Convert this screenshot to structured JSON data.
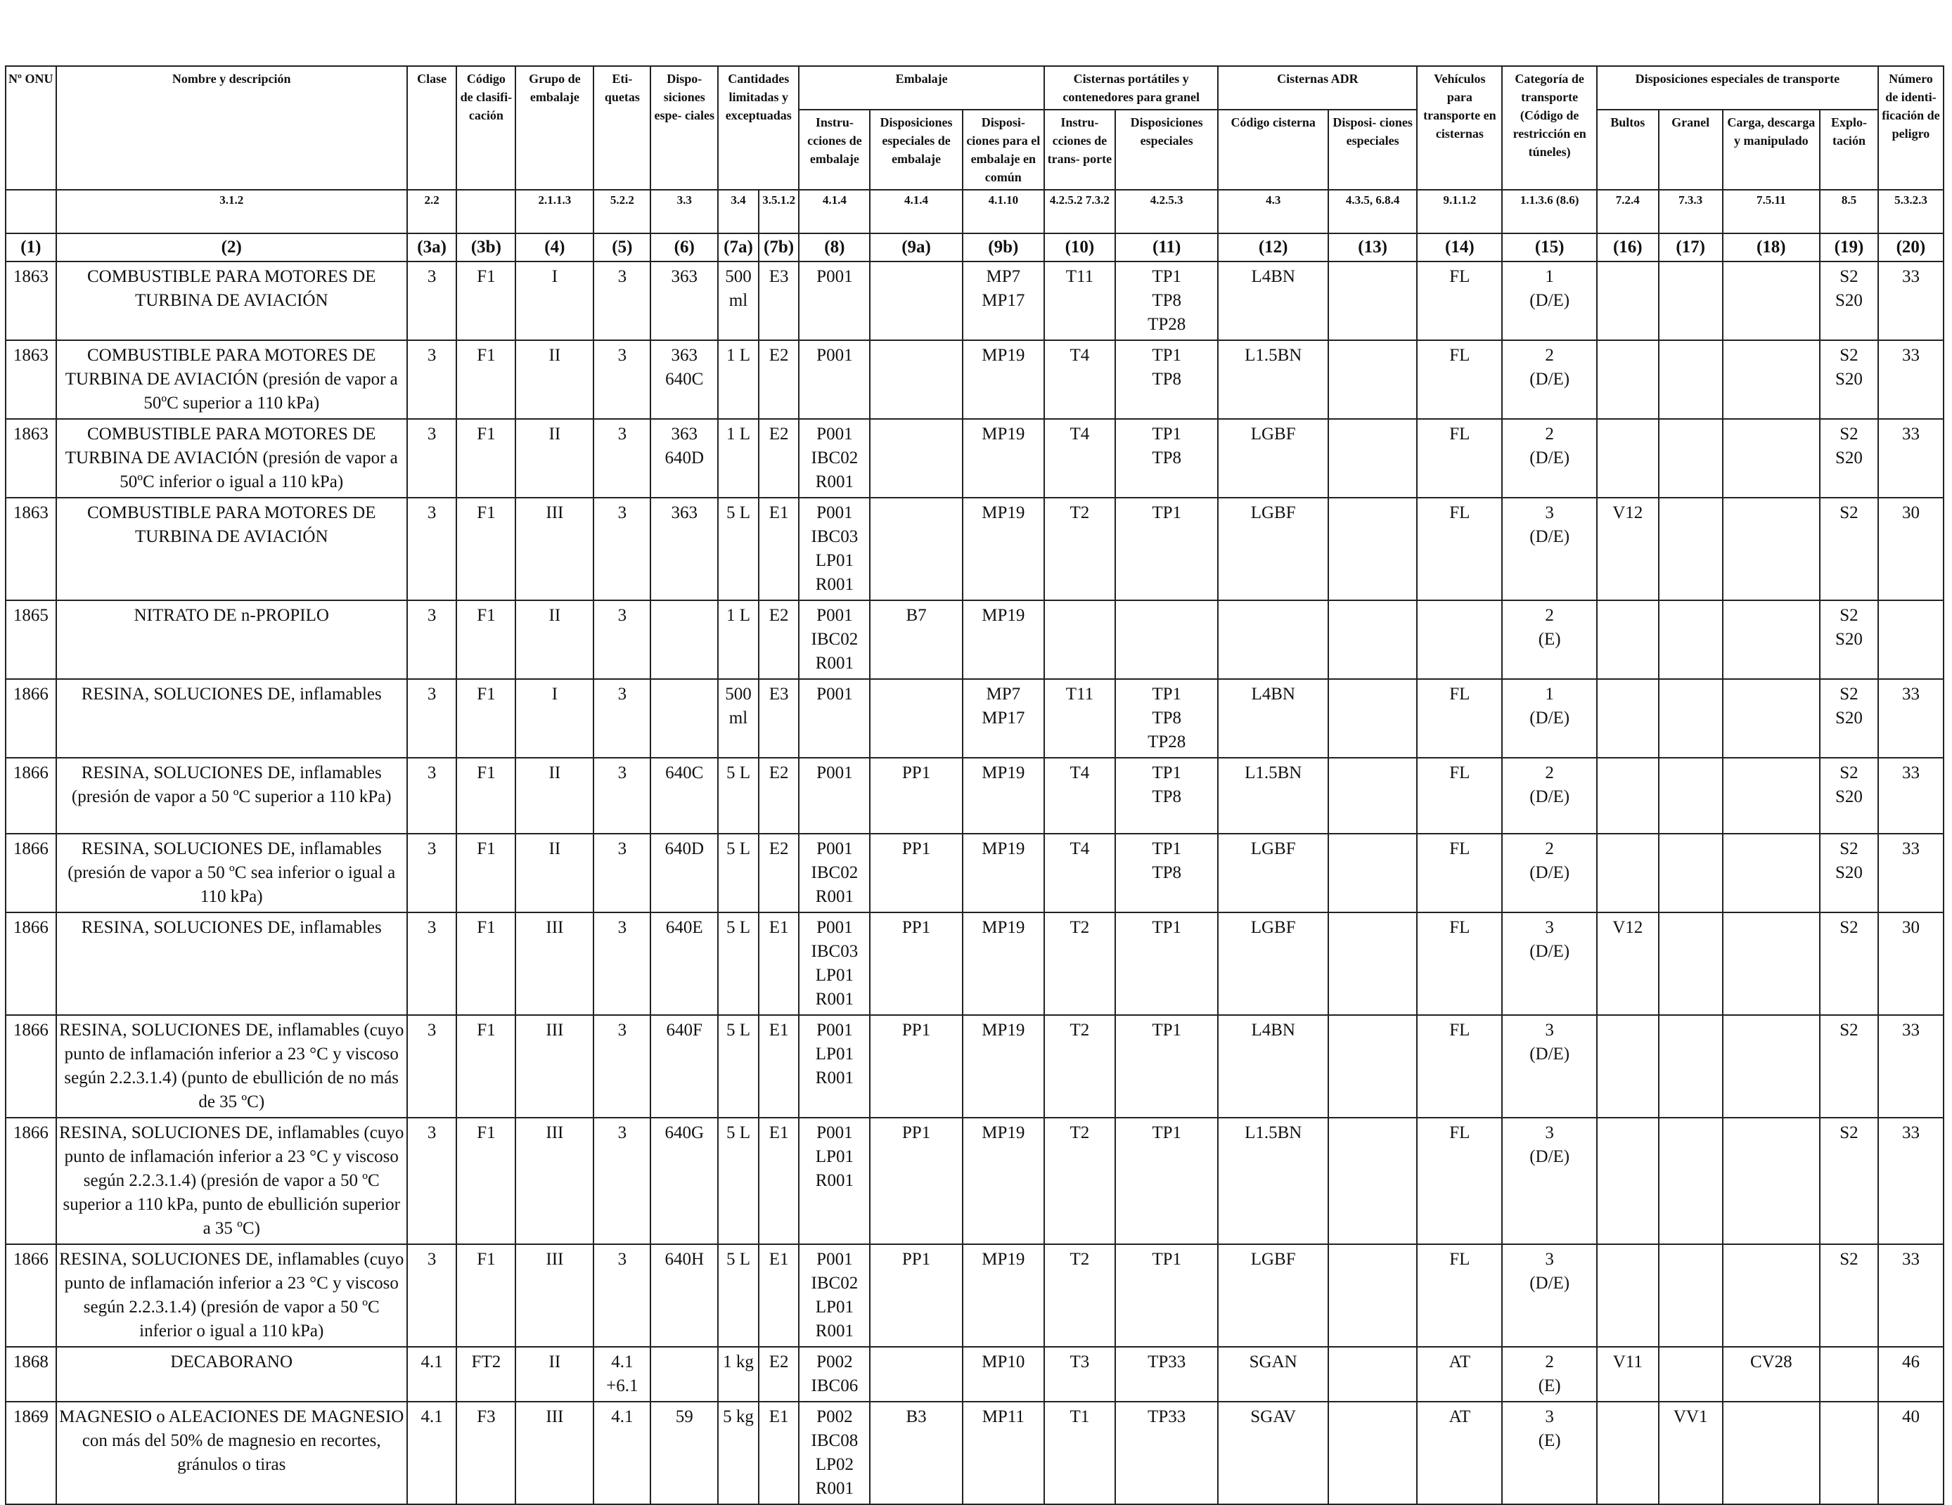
{
  "headers": {
    "h_onu": "Nº ONU",
    "h_name": "Nombre y descripción",
    "h_clase": "Clase",
    "h_codigo": "Código de clasifi- cación",
    "h_grupo": "Grupo de embalaje",
    "h_etiq": "Eti- quetas",
    "h_disp": "Dispo- siciones espe- ciales",
    "h_cant": "Cantidades limitadas y exceptuadas",
    "h_emb": "Embalaje",
    "h_emb_instr": "Instru- cciones de embalaje",
    "h_emb_disp": "Disposiciones especiales de embalaje",
    "h_emb_comun": "Disposi- ciones para el embalaje en común",
    "h_cist": "Cisternas portátiles y contenedores para granel",
    "h_cist_instr": "Instru- cciones de trans- porte",
    "h_cist_disp": "Disposiciones especiales",
    "h_adr": "Cisternas ADR",
    "h_adr_cod": "Código cisterna",
    "h_adr_disp": "Disposi- ciones especiales",
    "h_veh": "Vehículos para transporte en cisternas",
    "h_cat": "Categoría de transporte (Código de restricción en túneles)",
    "h_dis": "Disposiciones especiales de transporte",
    "h_bultos": "Bultos",
    "h_granel": "Granel",
    "h_carga": "Carga, descarga y manipulado",
    "h_explo": "Explo- tación",
    "h_num": "Número de identi- ficación de peligro",
    "refs": {
      "r_name": "3.1.2",
      "r_clase": "2.2",
      "r_grupo": "2.1.1.3",
      "r_etiq": "5.2.2",
      "r_disp": "3.3",
      "r_7a": "3.4",
      "r_7b": "3.5.1.2",
      "r_8": "4.1.4",
      "r_9a": "4.1.4",
      "r_9b": "4.1.10",
      "r_10": "4.2.5.2 7.3.2",
      "r_11": "4.2.5.3",
      "r_12": "4.3",
      "r_13": "4.3.5, 6.8.4",
      "r_14": "9.1.1.2",
      "r_15": "1.1.3.6 (8.6)",
      "r_16": "7.2.4",
      "r_17": "7.3.3",
      "r_18": "7.5.11",
      "r_19": "8.5",
      "r_20": "5.3.2.3"
    },
    "colnums": [
      "(1)",
      "(2)",
      "(3a)",
      "(3b)",
      "(4)",
      "(5)",
      "(6)",
      "(7a)",
      "(7b)",
      "(8)",
      "(9a)",
      "(9b)",
      "(10)",
      "(11)",
      "(12)",
      "(13)",
      "(14)",
      "(15)",
      "(16)",
      "(17)",
      "(18)",
      "(19)",
      "(20)"
    ]
  },
  "rows": [
    {
      "onu": "1863",
      "name": "COMBUSTIBLE PARA MOTORES DE TURBINA DE AVIACIÓN",
      "clase": "3",
      "codigo": "F1",
      "grupo": "I",
      "etiq": "3",
      "disp": "363",
      "c7a": "500 ml",
      "c7b": "E3",
      "c8": [
        "P001"
      ],
      "c9a": "",
      "c9b": [
        "MP7",
        "MP17"
      ],
      "c10": "T11",
      "c11": [
        "TP1",
        "TP8",
        "TP28"
      ],
      "c12": "L4BN",
      "c13": "",
      "c14": "FL",
      "c15": [
        "1",
        "(D/E)"
      ],
      "c16": "",
      "c17": "",
      "c18": "",
      "c19": [
        "S2",
        "S20"
      ],
      "c20": "33"
    },
    {
      "onu": "1863",
      "name": "COMBUSTIBLE PARA MOTORES DE TURBINA DE AVIACIÓN (presión de vapor a 50ºC superior a 110 kPa)",
      "clase": "3",
      "codigo": "F1",
      "grupo": "II",
      "etiq": "3",
      "disp": "363 640C",
      "c7a": "1 L",
      "c7b": "E2",
      "c8": [
        "P001"
      ],
      "c9a": "",
      "c9b": [
        "MP19"
      ],
      "c10": "T4",
      "c11": [
        "TP1",
        "TP8"
      ],
      "c12": "L1.5BN",
      "c13": "",
      "c14": "FL",
      "c15": [
        "2",
        "(D/E)"
      ],
      "c16": "",
      "c17": "",
      "c18": "",
      "c19": [
        "S2",
        "S20"
      ],
      "c20": "33"
    },
    {
      "onu": "1863",
      "name": "COMBUSTIBLE PARA MOTORES DE TURBINA DE AVIACIÓN (presión de vapor a 50ºC inferior o igual a 110 kPa)",
      "clase": "3",
      "codigo": "F1",
      "grupo": "II",
      "etiq": "3",
      "disp": "363 640D",
      "c7a": "1 L",
      "c7b": "E2",
      "c8": [
        "P001",
        "IBC02",
        "R001"
      ],
      "c9a": "",
      "c9b": [
        "MP19"
      ],
      "c10": "T4",
      "c11": [
        "TP1",
        "TP8"
      ],
      "c12": "LGBF",
      "c13": "",
      "c14": "FL",
      "c15": [
        "2",
        "(D/E)"
      ],
      "c16": "",
      "c17": "",
      "c18": "",
      "c19": [
        "S2",
        "S20"
      ],
      "c20": "33"
    },
    {
      "onu": "1863",
      "name": "COMBUSTIBLE PARA MOTORES DE TURBINA DE AVIACIÓN",
      "clase": "3",
      "codigo": "F1",
      "grupo": "III",
      "etiq": "3",
      "disp": "363",
      "c7a": "5 L",
      "c7b": "E1",
      "c8": [
        "P001",
        "IBC03",
        "LP01",
        "R001"
      ],
      "c9a": "",
      "c9b": [
        "MP19"
      ],
      "c10": "T2",
      "c11": [
        "TP1"
      ],
      "c12": "LGBF",
      "c13": "",
      "c14": "FL",
      "c15": [
        "3",
        "(D/E)"
      ],
      "c16": "V12",
      "c17": "",
      "c18": "",
      "c19": [
        "S2"
      ],
      "c20": "30"
    },
    {
      "onu": "1865",
      "name": "NITRATO DE n-PROPILO",
      "clase": "3",
      "codigo": "F1",
      "grupo": "II",
      "etiq": "3",
      "disp": "",
      "c7a": "1 L",
      "c7b": "E2",
      "c8": [
        "P001",
        "IBC02",
        "R001"
      ],
      "c9a": "B7",
      "c9b": [
        "MP19"
      ],
      "c10": "",
      "c11": [],
      "c12": "",
      "c13": "",
      "c14": "",
      "c15": [
        "2",
        "(E)"
      ],
      "c16": "",
      "c17": "",
      "c18": "",
      "c19": [
        "S2",
        "S20"
      ],
      "c20": ""
    },
    {
      "onu": "1866",
      "name": "RESINA, SOLUCIONES DE, inflamables",
      "clase": "3",
      "codigo": "F1",
      "grupo": "I",
      "etiq": "3",
      "disp": "",
      "c7a": "500 ml",
      "c7b": "E3",
      "c8": [
        "P001"
      ],
      "c9a": "",
      "c9b": [
        "MP7",
        "MP17"
      ],
      "c10": "T11",
      "c11": [
        "TP1",
        "TP8",
        "TP28"
      ],
      "c12": "L4BN",
      "c13": "",
      "c14": "FL",
      "c15": [
        "1",
        "(D/E)"
      ],
      "c16": "",
      "c17": "",
      "c18": "",
      "c19": [
        "S2",
        "S20"
      ],
      "c20": "33"
    },
    {
      "onu": "1866",
      "name": "RESINA, SOLUCIONES DE, inflamables (presión de vapor a 50 ºC superior a 110 kPa)",
      "clase": "3",
      "codigo": "F1",
      "grupo": "II",
      "etiq": "3",
      "disp": "640C",
      "c7a": "5 L",
      "c7b": "E2",
      "c8": [
        "P001"
      ],
      "c9a": "PP1",
      "c9b": [
        "MP19"
      ],
      "c10": "T4",
      "c11": [
        "TP1",
        "TP8"
      ],
      "c12": "L1.5BN",
      "c13": "",
      "c14": "FL",
      "c15": [
        "2",
        "(D/E)"
      ],
      "c16": "",
      "c17": "",
      "c18": "",
      "c19": [
        "S2",
        "S20"
      ],
      "c20": "33"
    },
    {
      "onu": "1866",
      "name": "RESINA, SOLUCIONES DE, inflamables (presión de vapor a 50 ºC sea inferior o igual a 110 kPa)",
      "clase": "3",
      "codigo": "F1",
      "grupo": "II",
      "etiq": "3",
      "disp": "640D",
      "c7a": "5 L",
      "c7b": "E2",
      "c8": [
        "P001",
        "IBC02",
        "R001"
      ],
      "c9a": "PP1",
      "c9b": [
        "MP19"
      ],
      "c10": "T4",
      "c11": [
        "TP1",
        "TP8"
      ],
      "c12": "LGBF",
      "c13": "",
      "c14": "FL",
      "c15": [
        "2",
        "(D/E)"
      ],
      "c16": "",
      "c17": "",
      "c18": "",
      "c19": [
        "S2",
        "S20"
      ],
      "c20": "33"
    },
    {
      "onu": "1866",
      "name": "RESINA, SOLUCIONES DE, inflamables",
      "clase": "3",
      "codigo": "F1",
      "grupo": "III",
      "etiq": "3",
      "disp": "640E",
      "c7a": "5 L",
      "c7b": "E1",
      "c8": [
        "P001",
        "IBC03",
        "LP01",
        "R001"
      ],
      "c9a": "PP1",
      "c9b": [
        "MP19"
      ],
      "c10": "T2",
      "c11": [
        "TP1"
      ],
      "c12": "LGBF",
      "c13": "",
      "c14": "FL",
      "c15": [
        "3",
        "(D/E)"
      ],
      "c16": "V12",
      "c17": "",
      "c18": "",
      "c19": [
        "S2"
      ],
      "c20": "30"
    },
    {
      "onu": "1866",
      "name": "RESINA, SOLUCIONES DE, inflamables (cuyo punto de inflamación inferior a 23 °C y viscoso según 2.2.3.1.4) (punto de ebullición de no más de 35 ºC)",
      "clase": "3",
      "codigo": "F1",
      "grupo": "III",
      "etiq": "3",
      "disp": "640F",
      "c7a": "5 L",
      "c7b": "E1",
      "c8": [
        "P001",
        "LP01",
        "R001"
      ],
      "c9a": "PP1",
      "c9b": [
        "MP19"
      ],
      "c10": "T2",
      "c11": [
        "TP1"
      ],
      "c12": "L4BN",
      "c13": "",
      "c14": "FL",
      "c15": [
        "3",
        "(D/E)"
      ],
      "c16": "",
      "c17": "",
      "c18": "",
      "c19": [
        "S2"
      ],
      "c20": "33"
    },
    {
      "onu": "1866",
      "name": "RESINA, SOLUCIONES DE, inflamables (cuyo punto de inflamación inferior a 23 °C y viscoso según 2.2.3.1.4) (presión de vapor a 50 ºC superior a 110 kPa, punto de ebullición superior a 35 ºC)",
      "clase": "3",
      "codigo": "F1",
      "grupo": "III",
      "etiq": "3",
      "disp": "640G",
      "c7a": "5 L",
      "c7b": "E1",
      "c8": [
        "P001",
        "LP01",
        "R001"
      ],
      "c9a": "PP1",
      "c9b": [
        "MP19"
      ],
      "c10": "T2",
      "c11": [
        "TP1"
      ],
      "c12": "L1.5BN",
      "c13": "",
      "c14": "FL",
      "c15": [
        "3",
        "(D/E)"
      ],
      "c16": "",
      "c17": "",
      "c18": "",
      "c19": [
        "S2"
      ],
      "c20": "33"
    },
    {
      "onu": "1866",
      "name": "RESINA, SOLUCIONES DE, inflamables (cuyo punto de inflamación inferior a 23 °C y viscoso según 2.2.3.1.4) (presión de vapor a 50 ºC inferior o igual a 110 kPa)",
      "clase": "3",
      "codigo": "F1",
      "grupo": "III",
      "etiq": "3",
      "disp": "640H",
      "c7a": "5 L",
      "c7b": "E1",
      "c8": [
        "P001",
        "IBC02",
        "LP01",
        "R001"
      ],
      "c9a": "PP1",
      "c9b": [
        "MP19"
      ],
      "c10": "T2",
      "c11": [
        "TP1"
      ],
      "c12": "LGBF",
      "c13": "",
      "c14": "FL",
      "c15": [
        "3",
        "(D/E)"
      ],
      "c16": "",
      "c17": "",
      "c18": "",
      "c19": [
        "S2"
      ],
      "c20": "33"
    },
    {
      "onu": "1868",
      "name": "DECABORANO",
      "clase": "4.1",
      "codigo": "FT2",
      "grupo": "II",
      "etiq": "4.1 +6.1",
      "disp": "",
      "c7a": "1 kg",
      "c7b": "E2",
      "c8": [
        "P002",
        "IBC06"
      ],
      "c9a": "",
      "c9b": [
        "MP10"
      ],
      "c10": "T3",
      "c11": [
        "TP33"
      ],
      "c12": "SGAN",
      "c13": "",
      "c14": "AT",
      "c15": [
        "2",
        "(E)"
      ],
      "c16": "V11",
      "c17": "",
      "c18": "CV28",
      "c19": [],
      "c20": "46"
    },
    {
      "onu": "1869",
      "name": "MAGNESIO o ALEACIONES DE MAGNESIO con más del 50% de magnesio en recortes, gránulos o tiras",
      "clase": "4.1",
      "codigo": "F3",
      "grupo": "III",
      "etiq": "4.1",
      "disp": "59",
      "c7a": "5 kg",
      "c7b": "E1",
      "c8": [
        "P002",
        "IBC08",
        "LP02",
        "R001"
      ],
      "c9a": "B3",
      "c9b": [
        "MP11"
      ],
      "c10": "T1",
      "c11": [
        "TP33"
      ],
      "c12": "SGAV",
      "c13": "",
      "c14": "AT",
      "c15": [
        "3",
        "(E)"
      ],
      "c16": "",
      "c17": "VV1",
      "c18": "",
      "c19": [],
      "c20": "40"
    }
  ]
}
